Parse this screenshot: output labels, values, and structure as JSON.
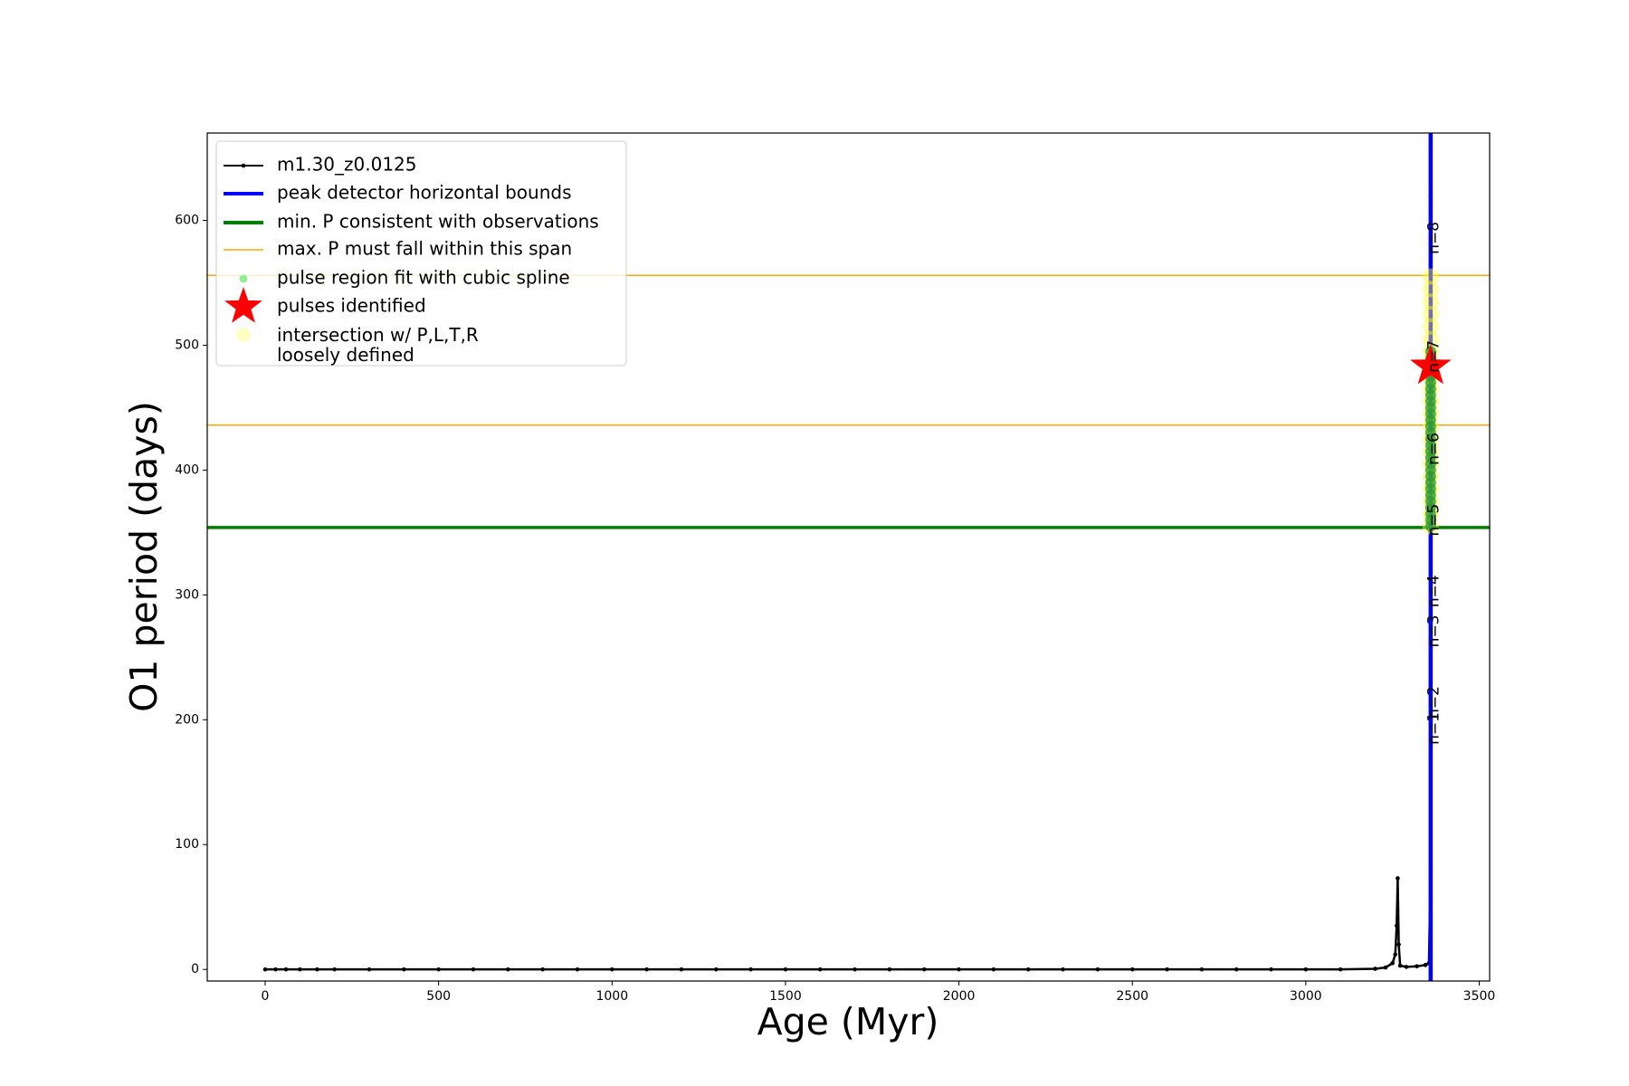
{
  "chart_data": {
    "type": "line",
    "xlabel": "Age (Myr)",
    "ylabel": "O1 period (days)",
    "xlim": [
      -167,
      3530
    ],
    "ylim": [
      -9.3,
      670
    ],
    "xticks": [
      0,
      500,
      1000,
      1500,
      2000,
      2500,
      3000,
      3500
    ],
    "yticks": [
      0,
      100,
      200,
      300,
      400,
      500,
      600
    ],
    "legend": "upper left",
    "series": [
      {
        "name": "m1.30_z0.0125",
        "color": "#000000",
        "style": "line-marker",
        "x": [
          0,
          30,
          60,
          100,
          150,
          200,
          300,
          400,
          500,
          600,
          700,
          800,
          900,
          1000,
          1100,
          1200,
          1300,
          1400,
          1500,
          1600,
          1700,
          1800,
          1900,
          2000,
          2100,
          2200,
          2300,
          2400,
          2500,
          2600,
          2700,
          2800,
          2900,
          3000,
          3100,
          3200,
          3230,
          3250,
          3258,
          3262,
          3265,
          3268,
          3272,
          3290,
          3320,
          3345,
          3355,
          3360,
          3360,
          3360,
          3360,
          3360
        ],
        "values": [
          0,
          0,
          0,
          0,
          0,
          0,
          0,
          0,
          0,
          0,
          0,
          0,
          0,
          0,
          0,
          0,
          0,
          0,
          0,
          0,
          0,
          0,
          0,
          0,
          0,
          0,
          0,
          0,
          0,
          0,
          0,
          0,
          0,
          0,
          0,
          0.5,
          1.5,
          5,
          12,
          35,
          73,
          20,
          3,
          2,
          2.5,
          3.5,
          5,
          80,
          200,
          350,
          500,
          620
        ]
      },
      {
        "name": "peak detector horizontal bounds",
        "color": "#0000ff",
        "style": "vline",
        "x": [
          3358,
          3362
        ]
      },
      {
        "name": "min. P consistent with observations",
        "color": "#008000",
        "style": "hline",
        "values": [
          354
        ]
      },
      {
        "name": "max. P must fall within this span",
        "color": "#ffa500",
        "style": "hline",
        "values": [
          436,
          556
        ]
      },
      {
        "name": "pulse region fit with cubic spline",
        "color": "#2f9e2f",
        "style": "scatter",
        "x": [
          3360,
          3360,
          3360,
          3360,
          3360,
          3360,
          3360,
          3360,
          3360,
          3360,
          3360,
          3360,
          3360,
          3360,
          3360,
          3360,
          3360,
          3360,
          3360,
          3360,
          3360,
          3360,
          3360,
          3360,
          3360,
          3360,
          3360,
          3360,
          3360
        ],
        "values": [
          355,
          360,
          365,
          370,
          375,
          380,
          385,
          390,
          395,
          400,
          405,
          410,
          415,
          420,
          425,
          430,
          435,
          440,
          445,
          450,
          455,
          460,
          465,
          470,
          475,
          480,
          485,
          490,
          495
        ]
      },
      {
        "name": "pulses identified",
        "color": "#ff0000",
        "style": "star",
        "x": [
          3360
        ],
        "values": [
          483
        ]
      },
      {
        "name": "intersection w/ P,L,T,R\nloosely defined",
        "color": "#ffff33",
        "style": "halo",
        "x": [
          3360,
          3360,
          3360,
          3360,
          3360,
          3360,
          3360,
          3360,
          3360,
          3360,
          3360,
          3360,
          3360,
          3360,
          3360,
          3360,
          3360,
          3360,
          3360,
          3360,
          3360
        ],
        "values": [
          355,
          365,
          375,
          385,
          395,
          405,
          415,
          425,
          435,
          445,
          455,
          465,
          475,
          485,
          495,
          505,
          515,
          525,
          535,
          545,
          555
        ]
      }
    ],
    "annotations": [
      {
        "text": "n=1",
        "x": 3370,
        "y": 193
      },
      {
        "text": "n=2",
        "x": 3370,
        "y": 214
      },
      {
        "text": "n=3",
        "x": 3370,
        "y": 271
      },
      {
        "text": "n=4",
        "x": 3370,
        "y": 303
      },
      {
        "text": "n=5",
        "x": 3370,
        "y": 360
      },
      {
        "text": "n=6",
        "x": 3370,
        "y": 417
      },
      {
        "text": "n=7",
        "x": 3370,
        "y": 491
      },
      {
        "text": "n=8",
        "x": 3370,
        "y": 586
      }
    ]
  }
}
